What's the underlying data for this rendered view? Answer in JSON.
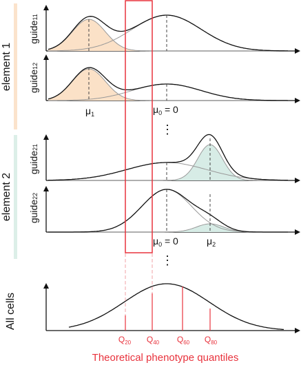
{
  "colors": {
    "element1_bar": "#fbe3cc",
    "element2_bar": "#dcefe8",
    "orange_fill": "#fbe1c7",
    "teal_fill": "#d7ece6",
    "highlight_box": "#e8323c",
    "quantile_text": "#e8323c",
    "curve": "#111111",
    "component_curve": "#999999"
  },
  "groups": [
    {
      "label": "element 1",
      "guides": [
        {
          "label_base": "guide",
          "label_sub": "11"
        },
        {
          "label_base": "guide",
          "label_sub": "12"
        }
      ]
    },
    {
      "label": "element 2",
      "guides": [
        {
          "label_base": "guide",
          "label_sub": "21"
        },
        {
          "label_base": "guide",
          "label_sub": "22"
        }
      ]
    }
  ],
  "all_cells_label": "All cells",
  "mu_labels": {
    "mu1": {
      "base": "μ",
      "sub": "1"
    },
    "mu0_top": {
      "base": "μ",
      "sub": "0",
      "suffix": " = 0"
    },
    "mu0_bottom": {
      "base": "μ",
      "sub": "0",
      "suffix": " = 0"
    },
    "mu2": {
      "base": "μ",
      "sub": "2"
    }
  },
  "ellipsis": "⋮",
  "quantiles": [
    {
      "base": "Q",
      "sub": "20"
    },
    {
      "base": "Q",
      "sub": "40"
    },
    {
      "base": "Q",
      "sub": "60"
    },
    {
      "base": "Q",
      "sub": "80"
    }
  ],
  "x_axis_title": "Theoretical phenotype quantiles"
}
